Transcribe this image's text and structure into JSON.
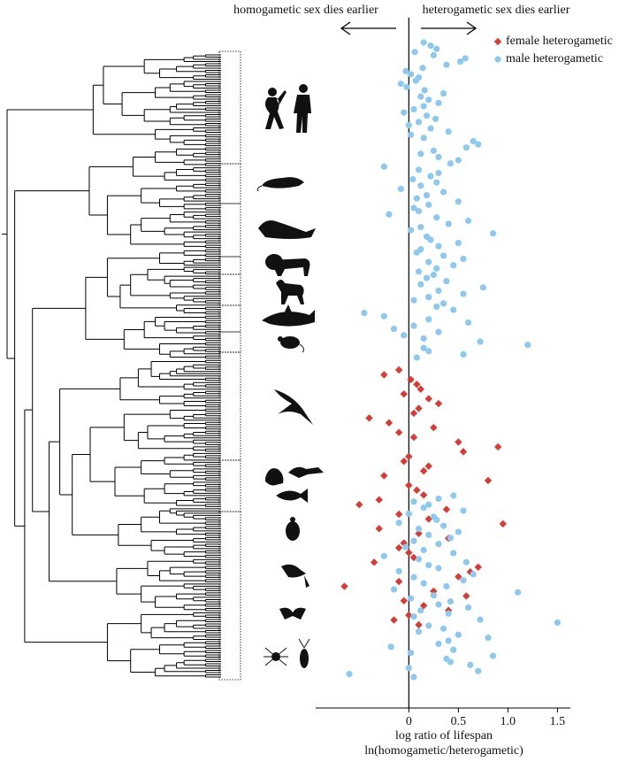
{
  "chart_data": {
    "type": "scatter",
    "annotations": [
      "homogametic sex dies earlier",
      "heterogametic sex dies earlier"
    ],
    "xlabel": [
      "log ratio of lifespan",
      "ln(homogametic/heterogametic)"
    ],
    "xlim": [
      -0.94,
      1.63
    ],
    "xticks": [
      0,
      0.5,
      {
        "value": 1,
        "label": "1.0"
      },
      1.5
    ],
    "series": [
      {
        "name": "female heterogametic",
        "color": "#d93a33",
        "marker": "diamond",
        "values": [
          -0.1,
          -0.25,
          0.02,
          0.08,
          0.12,
          -0.05,
          0.2,
          0.3,
          0.1,
          0.05,
          -0.4,
          -0.2,
          0.25,
          -0.1,
          0.05,
          0.5,
          0.9,
          0.55,
          0.0,
          -0.05,
          0.2,
          0.15,
          -0.25,
          0.8,
          0.0,
          0.08,
          0.15,
          -0.3,
          -0.5,
          0.38,
          -0.1,
          0.2,
          0.95,
          -0.3,
          0.1,
          0.4,
          -0.05,
          -0.1,
          0.0,
          0.05,
          -0.35,
          0.7,
          0.62,
          0.5,
          -0.1,
          -0.65,
          0.25,
          0.58,
          -0.05,
          0.15,
          0.4,
          0.0,
          -0.15,
          0.1
        ]
      },
      {
        "name": "male heterogametic",
        "color": "#8dc9ef",
        "marker": "circle",
        "values": [
          0.15,
          0.22,
          0.28,
          0.06,
          0.25,
          0.57,
          0.52,
          0.38,
          0.14,
          -0.03,
          0.02,
          0.1,
          0.07,
          -0.08,
          -0.02,
          0.16,
          0.35,
          0.12,
          0.2,
          0.3,
          0.15,
          0.05,
          -0.05,
          0.18,
          0.27,
          0.1,
          0,
          0.22,
          0.4,
          0.02,
          0.15,
          0.65,
          0.7,
          0.58,
          0.25,
          0.12,
          0.3,
          0.5,
          0.42,
          -0.25,
          0.1,
          0.3,
          0.22,
          0.04,
          0.28,
          0.12,
          -0.08,
          0.35,
          0.18,
          0.08,
          0.5,
          0.2,
          0.05,
          0.1,
          -0.2,
          0.28,
          0.6,
          0.4,
          0.12,
          0.02,
          0.85,
          0.18,
          0.22,
          0.5,
          0.3,
          0.12,
          0.08,
          0.35,
          0.55,
          0.2,
          0.45,
          0.28,
          0.1,
          0.25,
          0.18,
          0.38,
          0.12,
          0.75,
          0.3,
          0.55,
          0.2,
          0.05,
          0.35,
          0.28,
          0.45,
          -0.45,
          -0.25,
          0.2,
          0.6,
          0.05,
          -0.15,
          0.3,
          -0.05,
          0.15,
          0.72,
          1.2,
          0.15,
          0.2,
          0.55,
          0.08,
          0.45,
          0.3,
          0.05,
          0.2,
          0.15,
          0.55,
          0.0,
          0.25,
          0.28,
          -0.1,
          0.35,
          0.1,
          0.5,
          0.2,
          0.42,
          0.05,
          0.3,
          -0.03,
          0.15,
          0.45,
          -0.25,
          0.1,
          0.58,
          0.2,
          0.3,
          -0.1,
          0.65,
          0.05,
          0.55,
          0.15,
          0.38,
          -0.15,
          1.1,
          0.25,
          0.02,
          0.42,
          0.3,
          0.6,
          0.12,
          0.4,
          0.05,
          0.72,
          1.5,
          0.2,
          0.35,
          0.1,
          0.5,
          0.8,
          0.4,
          0.3,
          -0.18,
          0.45,
          0.02,
          0.85,
          0.38,
          0.42,
          0.62,
          0.0,
          0.7,
          -0.6,
          0.05
        ]
      }
    ]
  }
}
